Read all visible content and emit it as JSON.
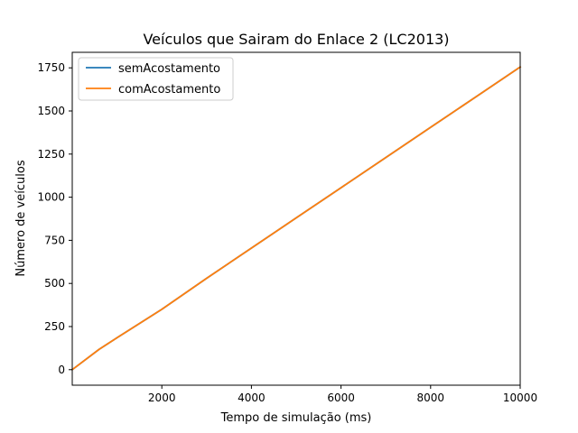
{
  "chart_data": {
    "type": "line",
    "title": "Veículos que Sairam do Enlace 2 (LC2013)",
    "xlabel": "Tempo de simulação (ms)",
    "ylabel": "Número de veículos",
    "xlim": [
      0,
      10000
    ],
    "ylim": [
      -90,
      1840
    ],
    "xticks": [
      2000,
      4000,
      6000,
      8000,
      10000
    ],
    "xtick_labels": [
      "2000",
      "4000",
      "6000",
      "8000",
      "10000"
    ],
    "yticks": [
      0,
      250,
      500,
      750,
      1000,
      1250,
      1500,
      1750
    ],
    "ytick_labels": [
      "0",
      "250",
      "500",
      "750",
      "1000",
      "1250",
      "1500",
      "1750"
    ],
    "grid": false,
    "legend_position": "top-left",
    "series": [
      {
        "name": "semAcostamento",
        "color": "#1f77b4",
        "x": [
          0,
          600,
          1000,
          2000,
          3000,
          4000,
          5000,
          6000,
          7000,
          8000,
          9000,
          10000
        ],
        "y": [
          0,
          118,
          185,
          350,
          530,
          705,
          880,
          1055,
          1230,
          1405,
          1580,
          1755
        ]
      },
      {
        "name": "comAcostamento",
        "color": "#ff7f0e",
        "x": [
          0,
          600,
          1000,
          2000,
          3000,
          4000,
          5000,
          6000,
          7000,
          8000,
          9000,
          10000
        ],
        "y": [
          0,
          118,
          185,
          350,
          530,
          705,
          880,
          1055,
          1230,
          1405,
          1580,
          1755
        ]
      }
    ]
  }
}
